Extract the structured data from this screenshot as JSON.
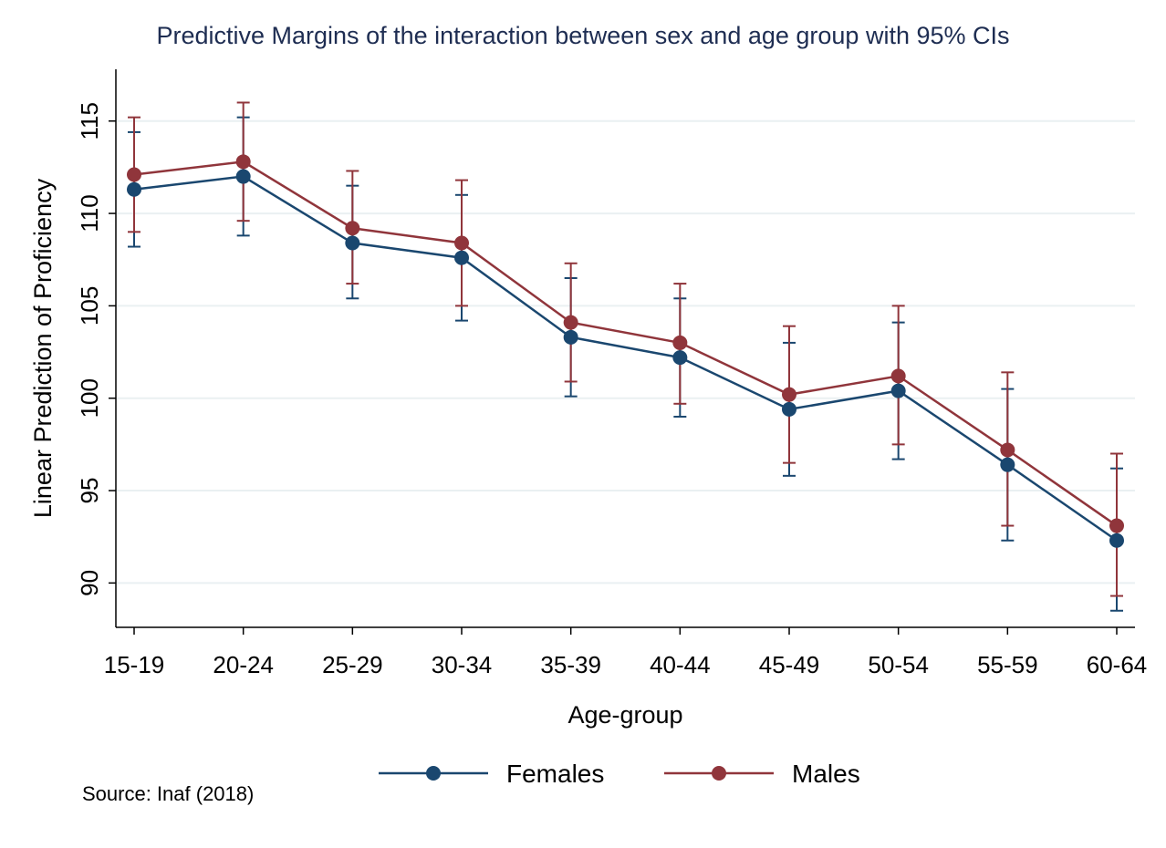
{
  "chart_data": {
    "type": "line",
    "title": "Predictive Margins of the interaction between sex and age group with 95% CIs",
    "xlabel": "Age-group",
    "ylabel": "Linear Prediction of Proficiency",
    "source": "Source: Inaf (2018)",
    "categories": [
      "15-19",
      "20-24",
      "25-29",
      "30-34",
      "35-39",
      "40-44",
      "45-49",
      "50-54",
      "55-59",
      "60-64"
    ],
    "yticks": [
      "90",
      "95",
      "100",
      "105",
      "110",
      "115"
    ],
    "ylim": [
      87.6,
      117.8
    ],
    "grid": true,
    "legend_position": "bottom",
    "series": [
      {
        "name": "Females",
        "color": "#1a476f",
        "values": [
          111.3,
          112.0,
          108.4,
          107.6,
          103.3,
          102.2,
          99.4,
          100.4,
          96.4,
          92.3
        ],
        "ci_low": [
          108.2,
          108.8,
          105.4,
          104.2,
          100.1,
          99.0,
          95.8,
          96.7,
          92.3,
          88.5
        ],
        "ci_high": [
          114.4,
          115.2,
          111.5,
          111.0,
          106.5,
          105.4,
          103.0,
          104.1,
          100.5,
          96.2
        ]
      },
      {
        "name": "Males",
        "color": "#90353b",
        "values": [
          112.1,
          112.8,
          109.2,
          108.4,
          104.1,
          103.0,
          100.2,
          101.2,
          97.2,
          93.1
        ],
        "ci_low": [
          109.0,
          109.6,
          106.2,
          105.0,
          100.9,
          99.7,
          96.5,
          97.5,
          93.1,
          89.3
        ],
        "ci_high": [
          115.2,
          116.0,
          112.3,
          111.8,
          107.3,
          106.2,
          103.9,
          105.0,
          101.4,
          97.0
        ]
      }
    ]
  }
}
